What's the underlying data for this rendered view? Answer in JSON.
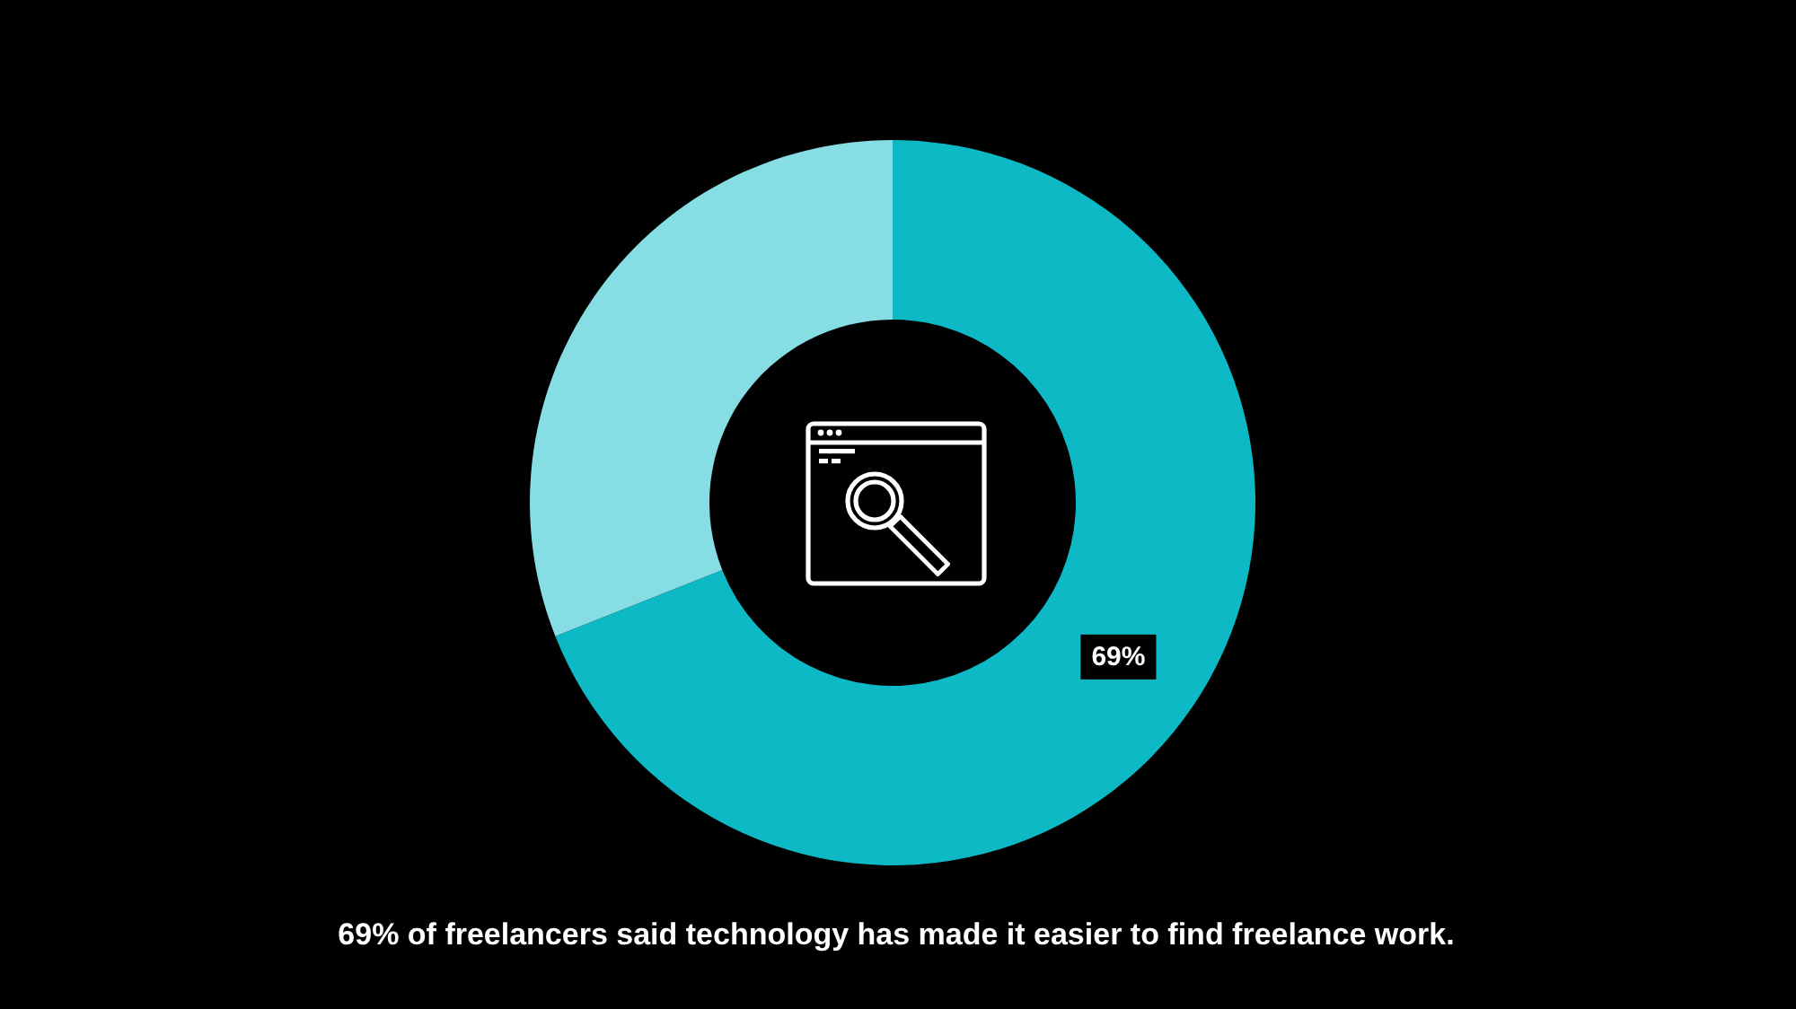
{
  "chart_data": {
    "type": "donut",
    "categories": [
      null,
      null
    ],
    "values": [
      69,
      31
    ],
    "colors": [
      "#0cb9c4",
      "#86dde3"
    ],
    "value_labels": [
      "69%",
      null
    ],
    "annotations": [
      "69% of freelancers said technology has made it easier to find freelance work."
    ]
  }
}
